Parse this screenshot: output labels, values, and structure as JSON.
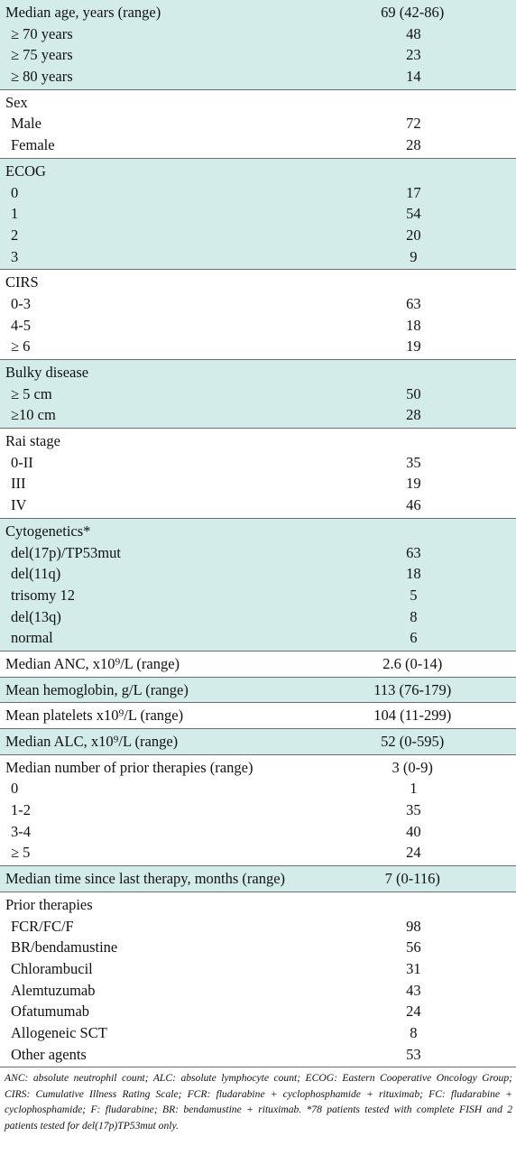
{
  "table": {
    "groups": [
      {
        "rows": [
          [
            "Median age, years (range)",
            "69 (42-86)"
          ],
          [
            "≥ 70 years",
            48
          ],
          [
            "≥ 75 years",
            23
          ],
          [
            "≥ 80 years",
            14
          ]
        ]
      },
      {
        "rows": [
          [
            "Sex"
          ],
          [
            "Male",
            72
          ],
          [
            "Female",
            28
          ]
        ]
      },
      {
        "rows": [
          [
            "ECOG"
          ],
          [
            "0",
            17
          ],
          [
            "1",
            54
          ],
          [
            "2",
            20
          ],
          [
            "3",
            9
          ]
        ]
      },
      {
        "rows": [
          [
            "CIRS"
          ],
          [
            "0-3",
            63
          ],
          [
            "4-5",
            18
          ],
          [
            "≥ 6",
            19
          ]
        ]
      },
      {
        "rows": [
          [
            "Bulky disease"
          ],
          [
            "≥ 5 cm",
            50
          ],
          [
            "≥10 cm",
            28
          ]
        ]
      },
      {
        "rows": [
          [
            "Rai stage"
          ],
          [
            "0-II",
            35
          ],
          [
            "III",
            19
          ],
          [
            "IV",
            46
          ]
        ]
      },
      {
        "rows": [
          [
            "Cytogenetics*"
          ],
          [
            "del(17p)/TP53mut",
            63
          ],
          [
            "del(11q)",
            18
          ],
          [
            "trisomy 12",
            5
          ],
          [
            "del(13q)",
            8
          ],
          [
            "normal",
            6
          ]
        ]
      },
      {
        "rows": [
          [
            "Median ANC, x10⁹/L (range)",
            "2.6 (0-14)"
          ]
        ]
      },
      {
        "rows": [
          [
            "Mean hemoglobin, g/L (range)",
            "113 (76-179)"
          ]
        ]
      },
      {
        "rows": [
          [
            "Mean platelets x10⁹/L (range)",
            "104 (11-299)"
          ]
        ]
      },
      {
        "rows": [
          [
            "Median ALC, x10⁹/L (range)",
            "52 (0-595)"
          ]
        ]
      },
      {
        "rows": [
          [
            "Median number of prior therapies (range)",
            "3 (0-9)"
          ],
          [
            "0",
            1
          ],
          [
            "1-2",
            35
          ],
          [
            "3-4",
            40
          ],
          [
            "≥ 5",
            24
          ]
        ]
      },
      {
        "rows": [
          [
            "Median time since last therapy, months (range)",
            "7 (0-116)"
          ]
        ]
      },
      {
        "rows": [
          [
            "Prior therapies"
          ],
          [
            "FCR/FC/F",
            98
          ],
          [
            "BR/bendamustine",
            56
          ],
          [
            "Chlorambucil",
            31
          ],
          [
            "Alemtuzumab",
            43
          ],
          [
            "Ofatumumab",
            24
          ],
          [
            "Allogeneic SCT",
            8
          ],
          [
            "Other agents",
            53
          ]
        ]
      }
    ],
    "footnote": "ANC: absolute neutrophil count; ALC: absolute lymphocyte count; ECOG: Eastern Cooperative Oncology Group; CIRS: Cumulative Illness Rating Scale; FCR: fludarabine + cyclophosphamide + rituximab; FC: fludarabine + cyclophosphamide; F: fludarabine; BR: bendamustine + rituximab. *78 patients tested with complete FISH and 2 patients tested for del(17p)TP53mut only."
  }
}
